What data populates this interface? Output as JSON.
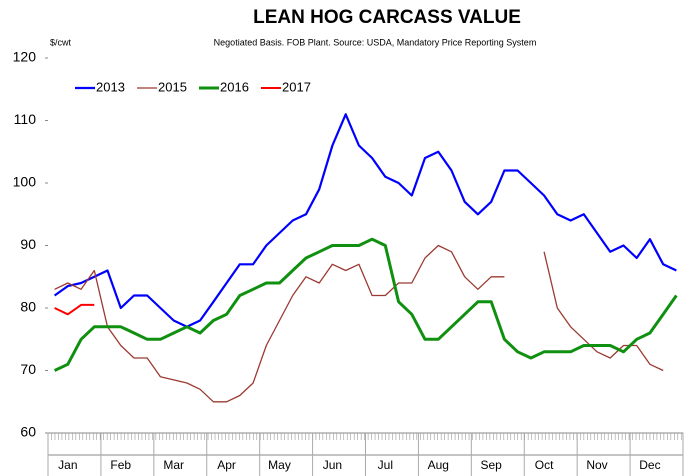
{
  "chart_data": {
    "type": "line",
    "title": "LEAN HOG CARCASS VALUE",
    "subtitle": "Negotiated Basis. FOB Plant.  Source: USDA, Mandatory Price Reporting System",
    "y_label": "$/cwt",
    "categories": [
      null,
      "Jan",
      null,
      null,
      null,
      "Feb",
      null,
      null,
      null,
      "Mar",
      null,
      null,
      null,
      "Apr",
      null,
      null,
      null,
      "May",
      null,
      null,
      null,
      "Jun",
      null,
      null,
      null,
      "Jul",
      null,
      null,
      null,
      "Aug",
      null,
      null,
      null,
      "Sep",
      null,
      null,
      null,
      "Oct",
      null,
      null,
      null,
      "Nov",
      null,
      null,
      null,
      "Dec",
      null,
      null
    ],
    "series": [
      {
        "name": "2013",
        "color": "#0000ff",
        "values": [
          82,
          83.5,
          84,
          85,
          86,
          80,
          82,
          82,
          80,
          78,
          77,
          78,
          81,
          84,
          87,
          87,
          90,
          92,
          94,
          95,
          99,
          106,
          111,
          106,
          104,
          101,
          100,
          98,
          104,
          105,
          102,
          97,
          95,
          97,
          102,
          102,
          100,
          98,
          95,
          94,
          95,
          92,
          89,
          90,
          88,
          91,
          87,
          86
        ]
      },
      {
        "name": "2015",
        "color": "#9b3a32",
        "values": [
          83,
          84,
          83,
          86,
          77,
          74,
          72,
          72,
          69,
          68.5,
          68,
          67,
          65,
          65,
          66,
          68,
          74,
          78,
          82,
          85,
          84,
          87,
          86,
          87,
          82,
          82,
          84,
          84,
          88,
          90,
          89,
          85,
          83,
          85,
          85,
          null,
          null,
          89,
          80,
          77,
          75,
          73,
          72,
          74,
          74,
          71,
          70,
          null
        ]
      },
      {
        "name": "2016",
        "color": "#109010",
        "values": [
          70,
          71,
          75,
          77,
          77,
          77,
          76,
          75,
          75,
          76,
          77,
          76,
          78,
          79,
          82,
          83,
          84,
          84,
          86,
          88,
          89,
          90,
          90,
          90,
          91,
          90,
          81,
          79,
          75,
          75,
          77,
          79,
          81,
          81,
          75,
          73,
          72,
          73,
          73,
          73,
          74,
          74,
          74,
          73,
          75,
          76,
          79,
          82
        ]
      },
      {
        "name": "2017",
        "color": "#ff0000",
        "values": [
          80,
          79,
          80.5,
          80.5,
          null,
          null,
          null,
          null,
          null,
          null,
          null,
          null,
          null,
          null,
          null,
          null,
          null,
          null,
          null,
          null,
          null,
          null,
          null,
          null,
          null,
          null,
          null,
          null,
          null,
          null,
          null,
          null,
          null,
          null,
          null,
          null,
          null,
          null,
          null,
          null,
          null,
          null,
          null,
          null,
          null,
          null,
          null,
          null
        ]
      }
    ],
    "ylim": [
      60,
      120
    ],
    "yticks": [
      60,
      70,
      80,
      90,
      100,
      110,
      120
    ],
    "grid": false,
    "legend": "top-left"
  }
}
